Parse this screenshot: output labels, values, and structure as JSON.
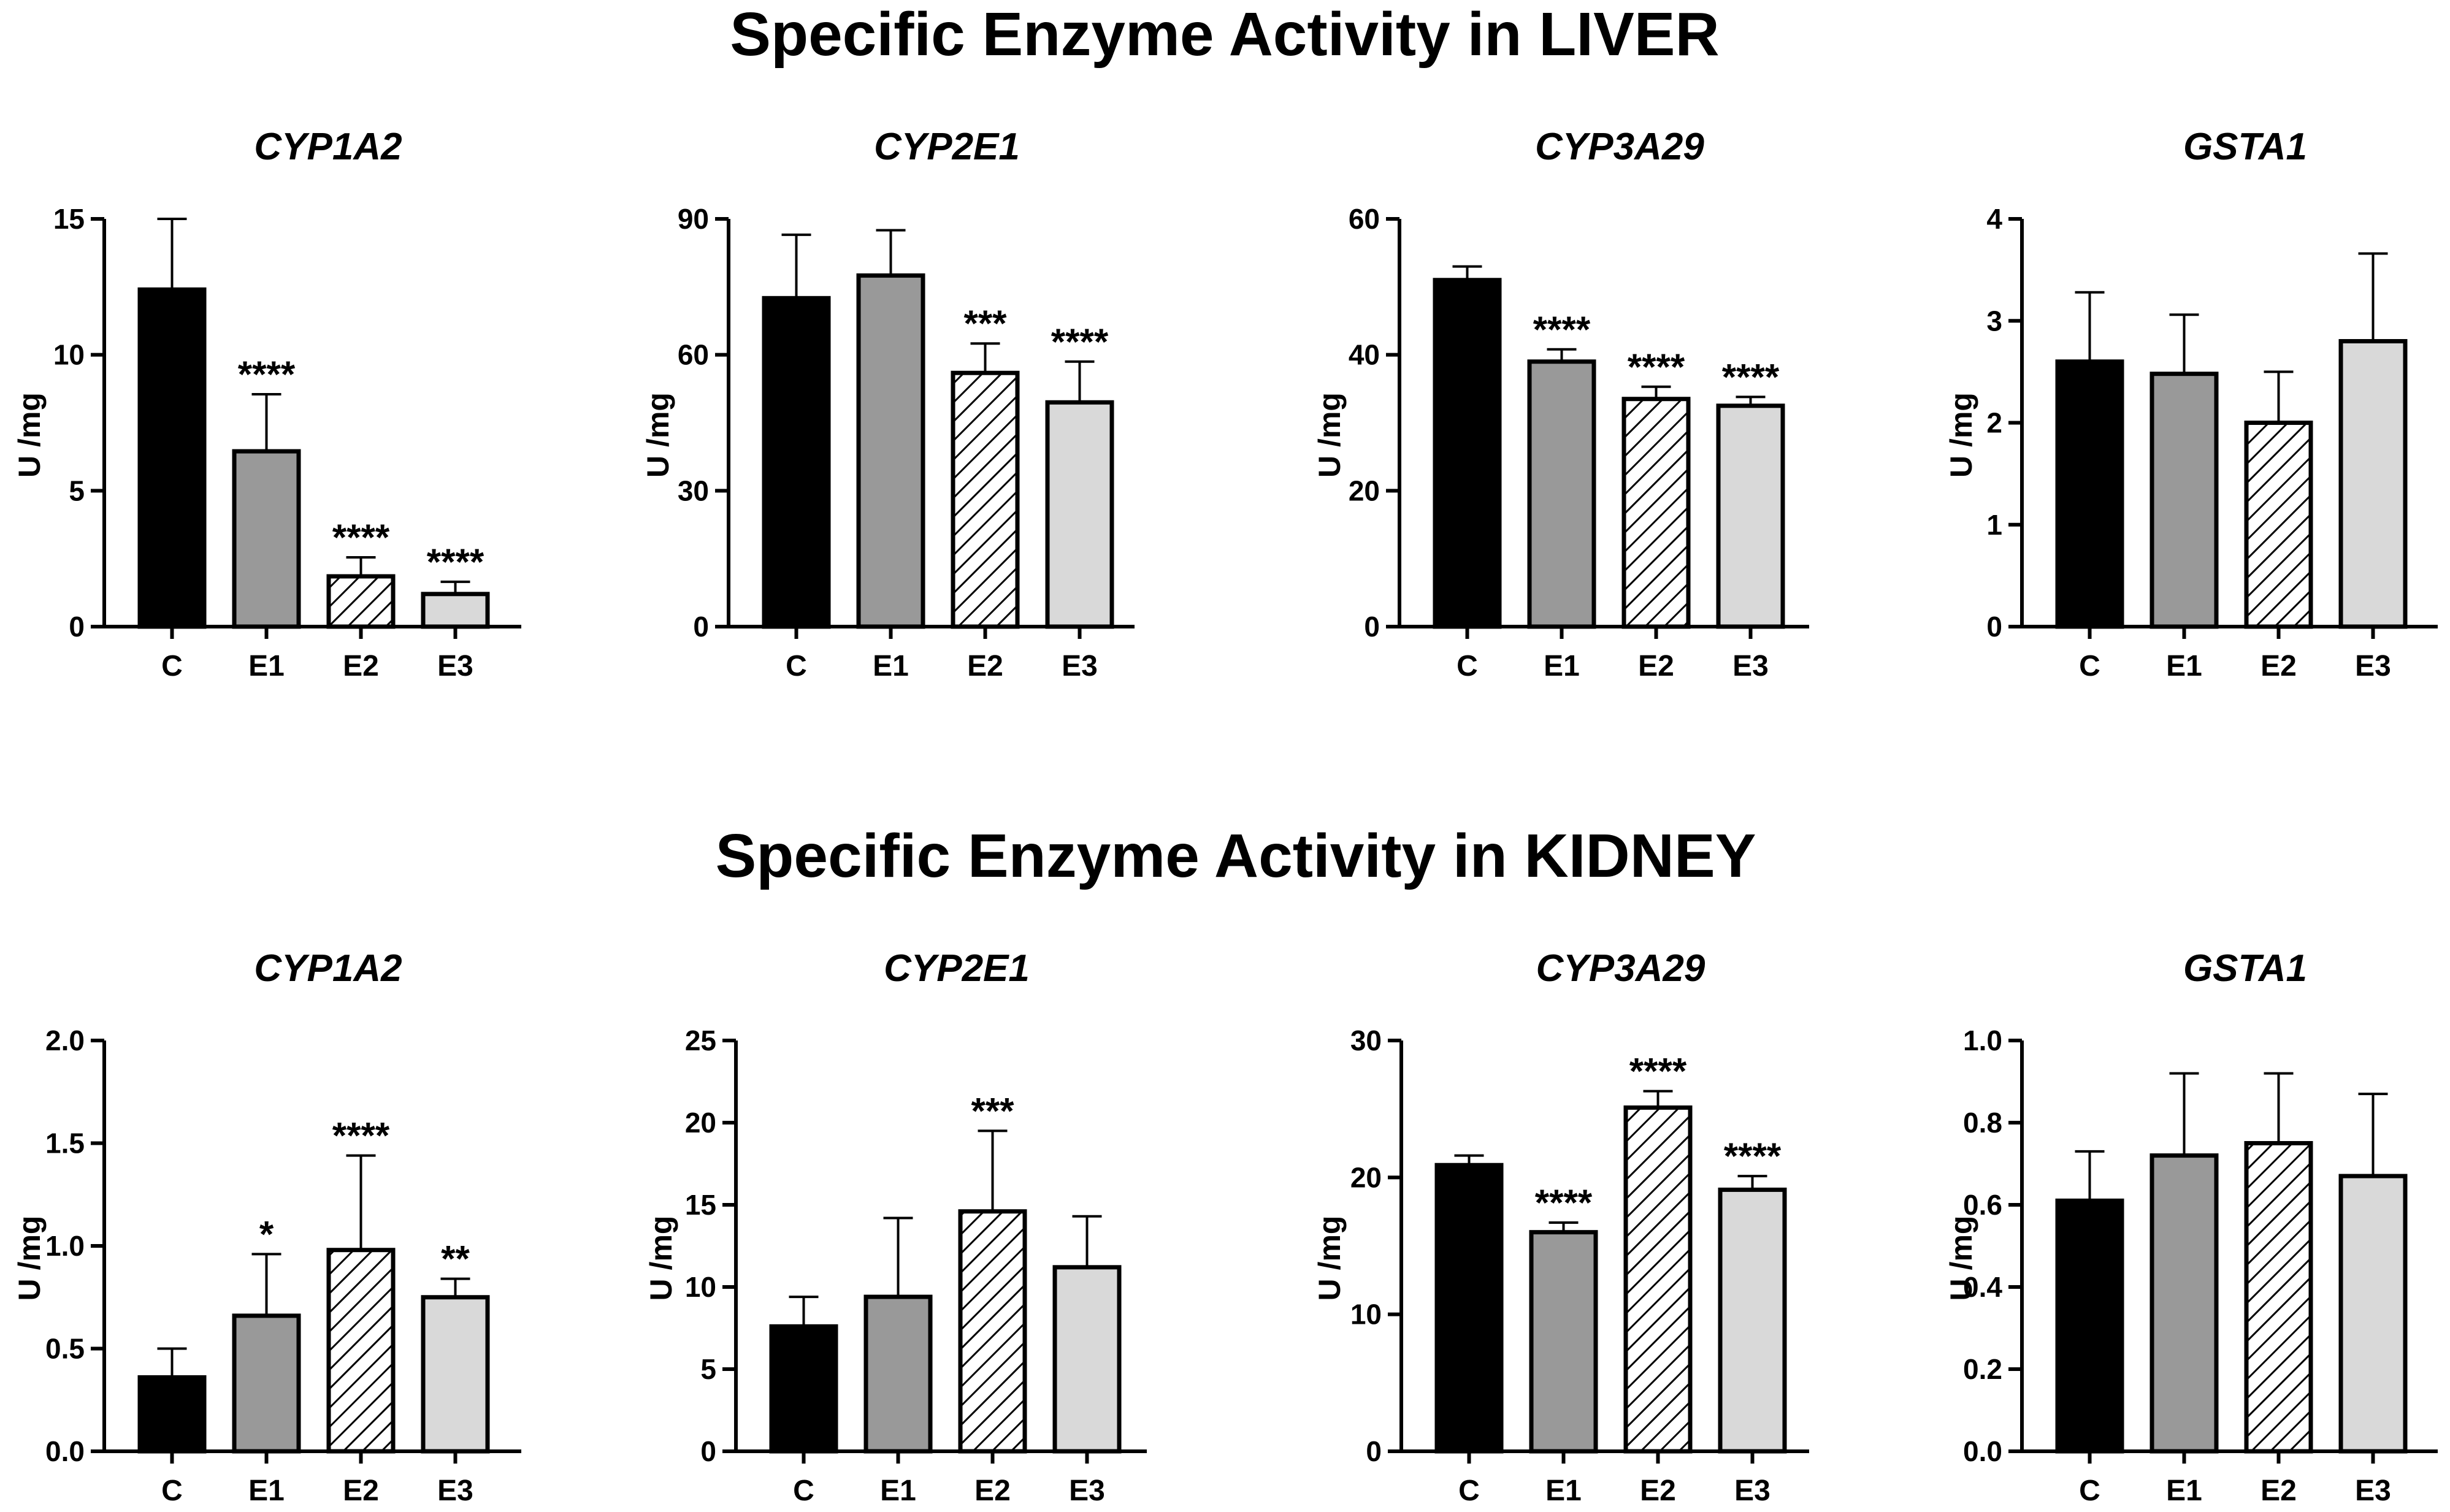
{
  "section_titles": [
    "Specific Enzyme Activity in LIVER",
    "Specific Enzyme Activity in KIDNEY"
  ],
  "colors": {
    "C": "#000000",
    "E1": "#999999",
    "E2": "hatch",
    "E3": "#d9d9d9",
    "axis": "#000000"
  },
  "chart_data": [
    {
      "type": "bar",
      "section": "LIVER",
      "title": "CYP1A2",
      "ylabel": "U /mg",
      "categories": [
        "C",
        "E1",
        "E2",
        "E3"
      ],
      "values": [
        12.4,
        6.45,
        1.85,
        1.2
      ],
      "errors": [
        2.6,
        2.1,
        0.7,
        0.45
      ],
      "significance": [
        "",
        "****",
        "****",
        "****"
      ],
      "ylim": [
        0,
        15
      ],
      "yticks": [
        0,
        5,
        10,
        15
      ],
      "ytick_labels": [
        "0",
        "5",
        "10",
        "15"
      ]
    },
    {
      "type": "bar",
      "section": "LIVER",
      "title": "CYP2E1",
      "ylabel": "U /mg",
      "categories": [
        "C",
        "E1",
        "E2",
        "E3"
      ],
      "values": [
        72.5,
        77.5,
        56,
        49.5
      ],
      "errors": [
        14,
        10,
        6.5,
        9
      ],
      "significance": [
        "",
        "",
        "***",
        "****"
      ],
      "ylim": [
        0,
        90
      ],
      "yticks": [
        0,
        30,
        60,
        90
      ],
      "ytick_labels": [
        "0",
        "30",
        "60",
        "90"
      ]
    },
    {
      "type": "bar",
      "section": "LIVER",
      "title": "CYP3A29",
      "ylabel": "U /mg",
      "categories": [
        "C",
        "E1",
        "E2",
        "E3"
      ],
      "values": [
        51,
        39,
        33.5,
        32.5
      ],
      "errors": [
        2,
        1.8,
        1.8,
        1.3
      ],
      "significance": [
        "",
        "****",
        "****",
        "****"
      ],
      "ylim": [
        0,
        60
      ],
      "yticks": [
        0,
        20,
        40,
        60
      ],
      "ytick_labels": [
        "0",
        "20",
        "40",
        "60"
      ]
    },
    {
      "type": "bar",
      "section": "LIVER",
      "title": "GSTA1",
      "ylabel": "U /mg",
      "categories": [
        "C",
        "E1",
        "E2",
        "E3"
      ],
      "values": [
        2.6,
        2.48,
        2.0,
        2.8
      ],
      "errors": [
        0.68,
        0.58,
        0.5,
        0.86
      ],
      "significance": [
        "",
        "",
        "",
        ""
      ],
      "ylim": [
        0,
        4
      ],
      "yticks": [
        0,
        1,
        2,
        3,
        4
      ],
      "ytick_labels": [
        "0",
        "1",
        "2",
        "3",
        "4"
      ]
    },
    {
      "type": "bar",
      "section": "KIDNEY",
      "title": "CYP1A2",
      "ylabel": "U /mg",
      "categories": [
        "C",
        "E1",
        "E2",
        "E3"
      ],
      "values": [
        0.36,
        0.66,
        0.98,
        0.75
      ],
      "errors": [
        0.14,
        0.3,
        0.46,
        0.09
      ],
      "significance": [
        "",
        "*",
        "****",
        "**"
      ],
      "ylim": [
        0,
        2
      ],
      "yticks": [
        0,
        0.5,
        1,
        1.5,
        2
      ],
      "ytick_labels": [
        "0.0",
        "0.5",
        "1.0",
        "1.5",
        "2.0"
      ]
    },
    {
      "type": "bar",
      "section": "KIDNEY",
      "title": "CYP2E1",
      "ylabel": "U /mg",
      "categories": [
        "C",
        "E1",
        "E2",
        "E3"
      ],
      "values": [
        7.6,
        9.4,
        14.6,
        11.2
      ],
      "errors": [
        1.8,
        4.8,
        4.9,
        3.1
      ],
      "significance": [
        "",
        "",
        "***",
        ""
      ],
      "ylim": [
        0,
        25
      ],
      "yticks": [
        0,
        5,
        10,
        15,
        20,
        25
      ],
      "ytick_labels": [
        "0",
        "5",
        "10",
        "15",
        "20",
        "25"
      ]
    },
    {
      "type": "bar",
      "section": "KIDNEY",
      "title": "CYP3A29",
      "ylabel": "U /mg",
      "categories": [
        "C",
        "E1",
        "E2",
        "E3"
      ],
      "values": [
        20.9,
        16.0,
        25.1,
        19.1
      ],
      "errors": [
        0.7,
        0.7,
        1.2,
        1.0
      ],
      "significance": [
        "",
        "****",
        "****",
        "****"
      ],
      "ylim": [
        0,
        30
      ],
      "yticks": [
        0,
        10,
        20,
        30
      ],
      "ytick_labels": [
        "0",
        "10",
        "20",
        "30"
      ]
    },
    {
      "type": "bar",
      "section": "KIDNEY",
      "title": "GSTA1",
      "ylabel": "U /mg",
      "categories": [
        "C",
        "E1",
        "E2",
        "E3"
      ],
      "values": [
        0.61,
        0.72,
        0.75,
        0.67
      ],
      "errors": [
        0.12,
        0.2,
        0.17,
        0.2
      ],
      "significance": [
        "",
        "",
        "",
        ""
      ],
      "ylim": [
        0,
        1
      ],
      "yticks": [
        0,
        0.2,
        0.4,
        0.6,
        0.8,
        1
      ],
      "ytick_labels": [
        "0.0",
        "0.2",
        "0.4",
        "0.6",
        "0.8",
        "1.0"
      ]
    }
  ]
}
